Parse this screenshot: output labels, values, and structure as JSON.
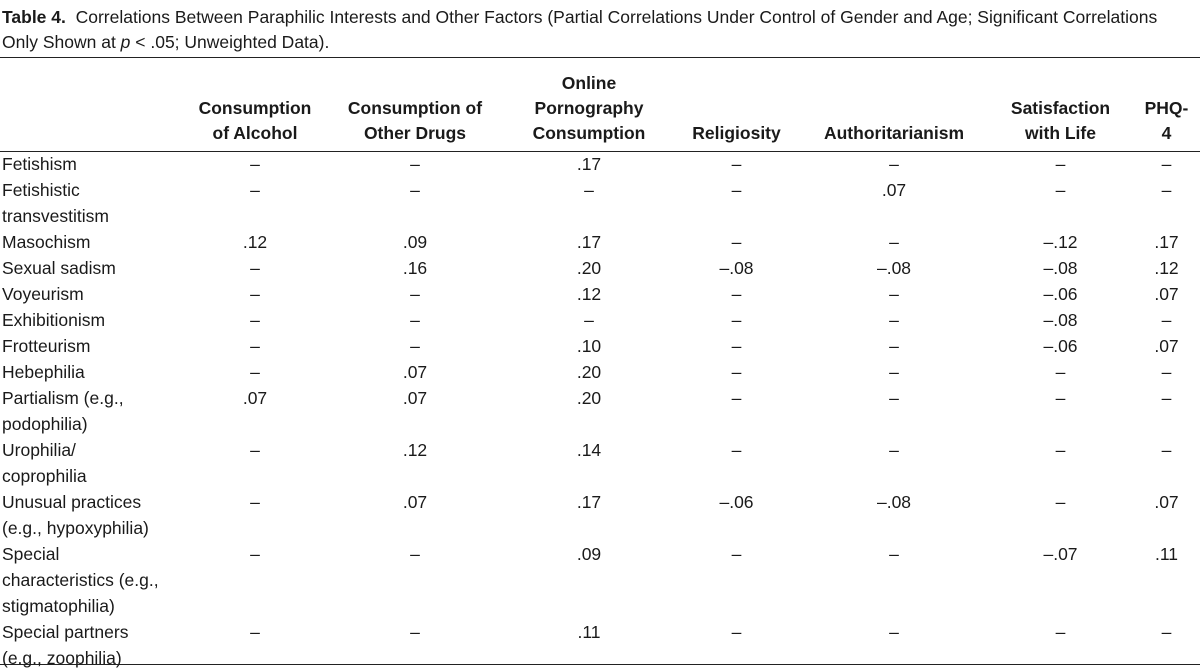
{
  "caption": {
    "label": "Table 4.",
    "text_before_p": "Correlations Between Paraphilic Interests and Other Factors (Partial Correlations Under Control of Gender and Age; Significant Correlations Only Shown at ",
    "p_symbol": "p",
    "text_after_p": " < .05; Unweighted Data)."
  },
  "headers": {
    "rowlabel": "",
    "c1": [
      "Consumption",
      "of Alcohol"
    ],
    "c2": [
      "Consumption of",
      "Other Drugs"
    ],
    "c3": [
      "Online",
      "Pornography",
      "Consumption"
    ],
    "c4": [
      "Religiosity"
    ],
    "c5": [
      "Authoritarianism"
    ],
    "c6": [
      "Satisfaction",
      "with Life"
    ],
    "c7": [
      "PHQ-",
      "4"
    ]
  },
  "rows": [
    {
      "label": [
        "Fetishism"
      ],
      "values": [
        "–",
        "–",
        ".17",
        "–",
        "–",
        "–",
        "–"
      ]
    },
    {
      "label": [
        "Fetishistic",
        "transvestitism"
      ],
      "values": [
        "–",
        "–",
        "–",
        "–",
        ".07",
        "–",
        "–"
      ]
    },
    {
      "label": [
        "Masochism"
      ],
      "values": [
        ".12",
        ".09",
        ".17",
        "–",
        "–",
        "–.12",
        ".17"
      ]
    },
    {
      "label": [
        "Sexual sadism"
      ],
      "values": [
        "–",
        ".16",
        ".20",
        "–.08",
        "–.08",
        "–.08",
        ".12"
      ]
    },
    {
      "label": [
        "Voyeurism"
      ],
      "values": [
        "–",
        "–",
        ".12",
        "–",
        "–",
        "–.06",
        ".07"
      ]
    },
    {
      "label": [
        "Exhibitionism"
      ],
      "values": [
        "–",
        "–",
        "–",
        "–",
        "–",
        "–.08",
        "–"
      ]
    },
    {
      "label": [
        "Frotteurism"
      ],
      "values": [
        "–",
        "–",
        ".10",
        "–",
        "–",
        "–.06",
        ".07"
      ]
    },
    {
      "label": [
        "Hebephilia"
      ],
      "values": [
        "–",
        ".07",
        ".20",
        "–",
        "–",
        "–",
        "–"
      ]
    },
    {
      "label": [
        "Partialism (e.g.,",
        "podophilia)"
      ],
      "values": [
        ".07",
        ".07",
        ".20",
        "–",
        "–",
        "–",
        "–"
      ]
    },
    {
      "label": [
        "Urophilia/",
        "coprophilia"
      ],
      "values": [
        "–",
        ".12",
        ".14",
        "–",
        "–",
        "–",
        "–"
      ]
    },
    {
      "label": [
        "Unusual practices",
        "(e.g., hypoxyphilia)"
      ],
      "values": [
        "–",
        ".07",
        ".17",
        "–.06",
        "–.08",
        "–",
        ".07"
      ]
    },
    {
      "label": [
        "Special",
        "characteristics (e.g.,",
        "stigmatophilia)"
      ],
      "values": [
        "–",
        "–",
        ".09",
        "–",
        "–",
        "–.07",
        ".11"
      ]
    },
    {
      "label": [
        "Special partners",
        "(e.g., zoophilia)"
      ],
      "values": [
        "–",
        "–",
        ".11",
        "–",
        "–",
        "–",
        "–"
      ]
    }
  ]
}
